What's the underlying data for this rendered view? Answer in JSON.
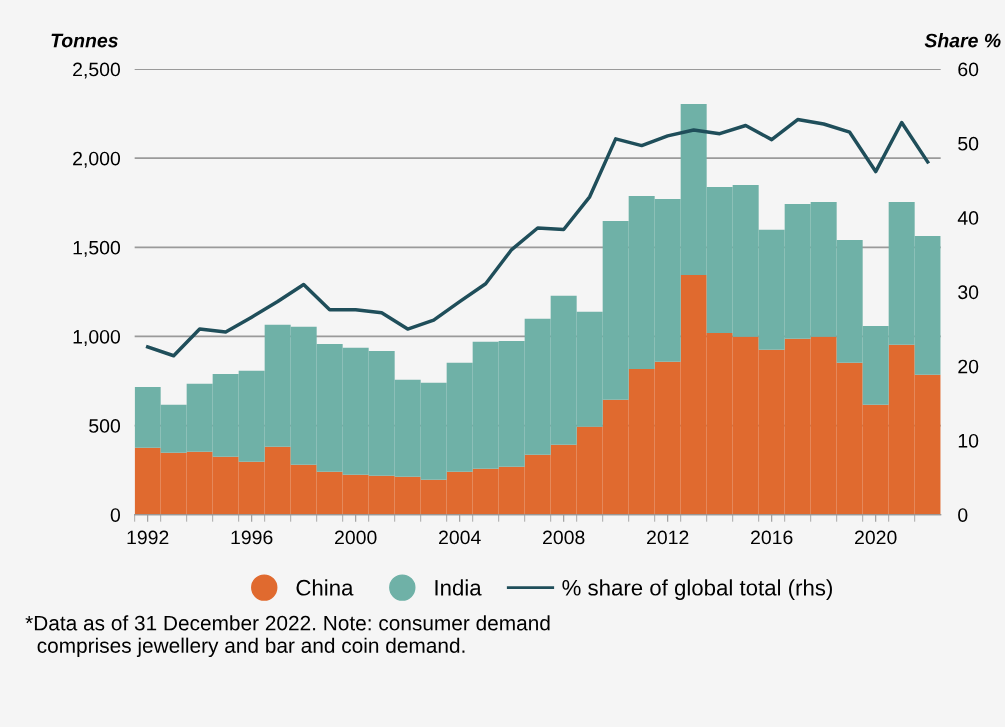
{
  "chart_data": {
    "type": "bar",
    "stacked": true,
    "ylabel": "Tonnes",
    "y2label": "Share %",
    "x": [
      1992,
      1993,
      1994,
      1995,
      1996,
      1997,
      1998,
      1999,
      2000,
      2001,
      2002,
      2003,
      2004,
      2005,
      2006,
      2007,
      2008,
      2009,
      2010,
      2011,
      2012,
      2013,
      2014,
      2015,
      2016,
      2017,
      2018,
      2019,
      2020,
      2021,
      2022
    ],
    "series": [
      {
        "name": "China",
        "color": "#e06a2f",
        "values": [
          376,
          348,
          353,
          325,
          297,
          381,
          280,
          241,
          224,
          219,
          213,
          196,
          241,
          258,
          269,
          336,
          392,
          493,
          645,
          818,
          858,
          1345,
          1020,
          998,
          925,
          987,
          998,
          852,
          617,
          953,
          785
        ]
      },
      {
        "name": "India",
        "color": "#6fb1a7",
        "values": [
          341,
          269,
          381,
          465,
          510,
          684,
          774,
          717,
          712,
          700,
          544,
          544,
          611,
          712,
          706,
          763,
          836,
          645,
          1003,
          970,
          913,
          959,
          819,
          852,
          673,
          756,
          756,
          689,
          442,
          801,
          779
        ]
      },
      {
        "name": "% share of global total (rhs)",
        "type": "line",
        "axis": "y2",
        "color": "#1f4e5a",
        "values": [
          22.6,
          21.4,
          25.0,
          24.6,
          26.6,
          28.7,
          31.0,
          27.6,
          27.6,
          27.2,
          25.0,
          26.2,
          28.7,
          31.1,
          35.7,
          38.6,
          38.4,
          42.8,
          50.6,
          49.7,
          51.0,
          51.8,
          51.3,
          52.4,
          50.5,
          53.2,
          52.6,
          51.5,
          46.2,
          52.8,
          47.5
        ]
      }
    ],
    "xlim": [
      1991.5,
      2022.5
    ],
    "xticks": [
      1992,
      1996,
      2000,
      2004,
      2008,
      2012,
      2016,
      2020
    ],
    "ylim": [
      0,
      2500
    ],
    "yticks": [
      0,
      {
        "value": 500,
        "label": "500"
      },
      {
        "value": 1000,
        "label": "1,000"
      },
      {
        "value": 1500,
        "label": "1,500"
      },
      {
        "value": 2000,
        "label": "2,000"
      },
      {
        "value": 2500,
        "label": "2,500"
      }
    ],
    "y2lim": [
      0,
      60
    ],
    "y2ticks": [
      0,
      10,
      20,
      30,
      40,
      50,
      60
    ],
    "grid": "y",
    "legend": "bottom",
    "line_style": "solid",
    "annotations": [
      "*Data as of 31 December 2022. Note: consumer demand\n  comprises jewellery and bar and coin demand."
    ]
  }
}
